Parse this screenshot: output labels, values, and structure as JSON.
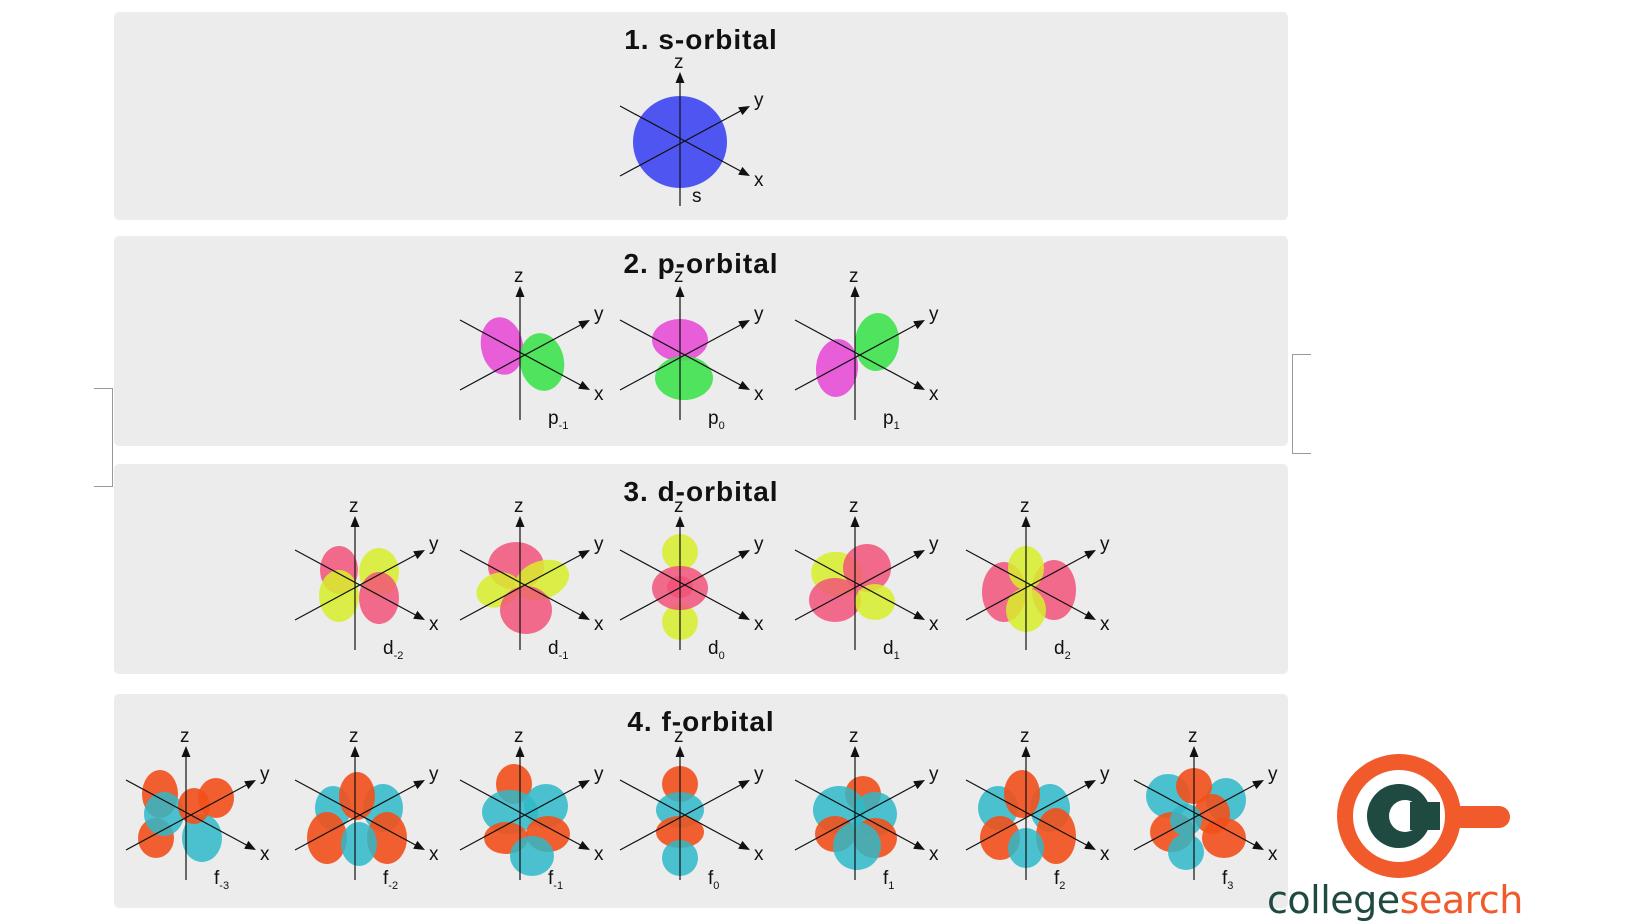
{
  "sections": [
    {
      "title": "1. s-orbital",
      "orbitals": [
        {
          "type": "s",
          "label": "s",
          "sub": ""
        }
      ]
    },
    {
      "title": "2. p-orbital",
      "orbitals": [
        {
          "type": "p-1",
          "label": "p",
          "sub": "-1"
        },
        {
          "type": "p0",
          "label": "p",
          "sub": "0"
        },
        {
          "type": "p1",
          "label": "p",
          "sub": "1"
        }
      ]
    },
    {
      "title": "3. d-orbital",
      "orbitals": [
        {
          "type": "d-2",
          "label": "d",
          "sub": "-2"
        },
        {
          "type": "d-1",
          "label": "d",
          "sub": "-1"
        },
        {
          "type": "d0",
          "label": "d",
          "sub": "0"
        },
        {
          "type": "d1",
          "label": "d",
          "sub": "1"
        },
        {
          "type": "d2",
          "label": "d",
          "sub": "2"
        }
      ]
    },
    {
      "title": "4. f-orbital",
      "orbitals": [
        {
          "type": "f-3",
          "label": "f",
          "sub": "-3"
        },
        {
          "type": "f-2",
          "label": "f",
          "sub": "-2"
        },
        {
          "type": "f-1",
          "label": "f",
          "sub": "-1"
        },
        {
          "type": "f0",
          "label": "f",
          "sub": "0"
        },
        {
          "type": "f1",
          "label": "f",
          "sub": "1"
        },
        {
          "type": "f2",
          "label": "f",
          "sub": "2"
        },
        {
          "type": "f3",
          "label": "f",
          "sub": "3"
        }
      ]
    }
  ],
  "axis_labels": {
    "x": "x",
    "y": "y",
    "z": "z"
  },
  "colors": {
    "s": "#4f55f0",
    "p_pos": "#e84fd6",
    "p_neg": "#3fe24c",
    "d_pos": "#f2547a",
    "d_neg": "#d8ef2a",
    "f_pos": "#f2501b",
    "f_neg": "#2fb8c8"
  },
  "logo": {
    "part1": "college",
    "part2": "search",
    "primary_color": "#1f4a42",
    "accent_color": "#f15a2b"
  }
}
